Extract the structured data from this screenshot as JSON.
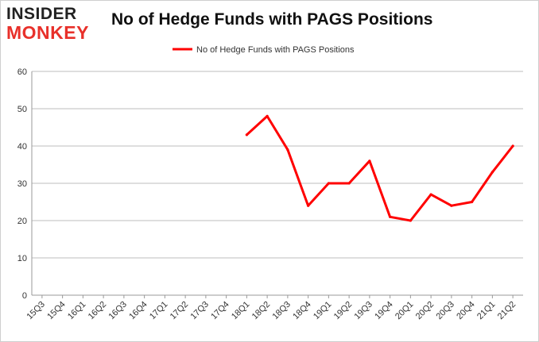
{
  "logo": {
    "line1": "INSIDER",
    "line2": "MONKEY"
  },
  "chart_data": {
    "type": "line",
    "title": "No of Hedge Funds with PAGS Positions",
    "xlabel": "",
    "ylabel": "",
    "categories": [
      "15Q3",
      "15Q4",
      "16Q1",
      "16Q2",
      "16Q3",
      "16Q4",
      "17Q1",
      "17Q2",
      "17Q3",
      "17Q4",
      "18Q1",
      "18Q2",
      "18Q3",
      "18Q4",
      "19Q1",
      "19Q2",
      "19Q3",
      "19Q4",
      "20Q1",
      "20Q2",
      "20Q3",
      "20Q4",
      "21Q1",
      "21Q2"
    ],
    "series": [
      {
        "name": "No of Hedge Funds with PAGS Positions",
        "color": "#ff0000",
        "values": [
          null,
          null,
          null,
          null,
          null,
          null,
          null,
          null,
          null,
          null,
          43,
          48,
          39,
          24,
          30,
          30,
          36,
          21,
          20,
          27,
          24,
          25,
          33,
          40
        ]
      }
    ],
    "ylim": [
      0,
      60
    ],
    "yticks": [
      0,
      10,
      20,
      30,
      40,
      50,
      60
    ],
    "grid": true,
    "legend": "top-center"
  }
}
